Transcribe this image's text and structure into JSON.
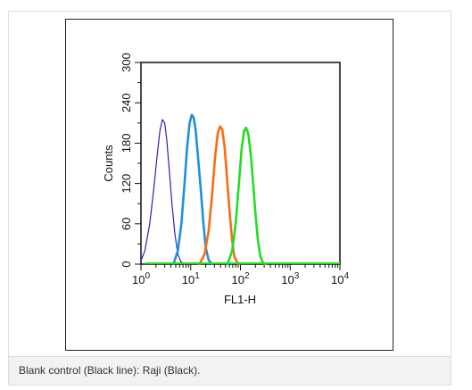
{
  "caption": "Blank control (Black line): Raji (Black).",
  "chart_data": {
    "type": "line",
    "title": "",
    "xlabel": "FL1-H",
    "ylabel": "Counts",
    "x_scale": "log",
    "xlim": [
      1,
      10000
    ],
    "ylim": [
      0,
      300
    ],
    "x_ticks": [
      {
        "value": 1,
        "base": "10",
        "exp": "0"
      },
      {
        "value": 10,
        "base": "10",
        "exp": "1"
      },
      {
        "value": 100,
        "base": "10",
        "exp": "2"
      },
      {
        "value": 1000,
        "base": "10",
        "exp": "3"
      },
      {
        "value": 10000,
        "base": "10",
        "exp": "4"
      }
    ],
    "y_ticks": [
      "0",
      "60",
      "120",
      "180",
      "240",
      "300"
    ],
    "grid": false,
    "legend": "none",
    "series": [
      {
        "color": "#2a22b8",
        "x": [
          1,
          1.2,
          1.5,
          1.8,
          2.1,
          2.4,
          2.7,
          3.0,
          3.3,
          3.7,
          4.2,
          4.8,
          5.5,
          6.3,
          7.5
        ],
        "y": [
          5,
          20,
          60,
          110,
          160,
          198,
          215,
          210,
          185,
          140,
          90,
          45,
          15,
          4,
          0
        ]
      },
      {
        "color": "#1e90e0",
        "x": [
          4.5,
          5.5,
          6.5,
          7.5,
          8.5,
          9.5,
          10.5,
          11.5,
          12.5,
          14,
          16,
          18,
          20,
          23,
          27
        ],
        "y": [
          0,
          20,
          60,
          120,
          175,
          210,
          222,
          218,
          200,
          160,
          110,
          60,
          25,
          6,
          0
        ]
      },
      {
        "color": "#ff6a13",
        "x": [
          15,
          19,
          23,
          27,
          31,
          35,
          39,
          43,
          48,
          54,
          61,
          68,
          75,
          85,
          95
        ],
        "y": [
          0,
          15,
          50,
          105,
          160,
          195,
          205,
          200,
          175,
          125,
          75,
          35,
          12,
          3,
          0
        ]
      },
      {
        "color": "#22dd22",
        "x": [
          55,
          68,
          80,
          92,
          105,
          118,
          130,
          145,
          160,
          180,
          200,
          225,
          250,
          280,
          310
        ],
        "y": [
          0,
          20,
          60,
          115,
          170,
          198,
          203,
          192,
          165,
          120,
          75,
          35,
          12,
          3,
          0
        ]
      }
    ]
  }
}
